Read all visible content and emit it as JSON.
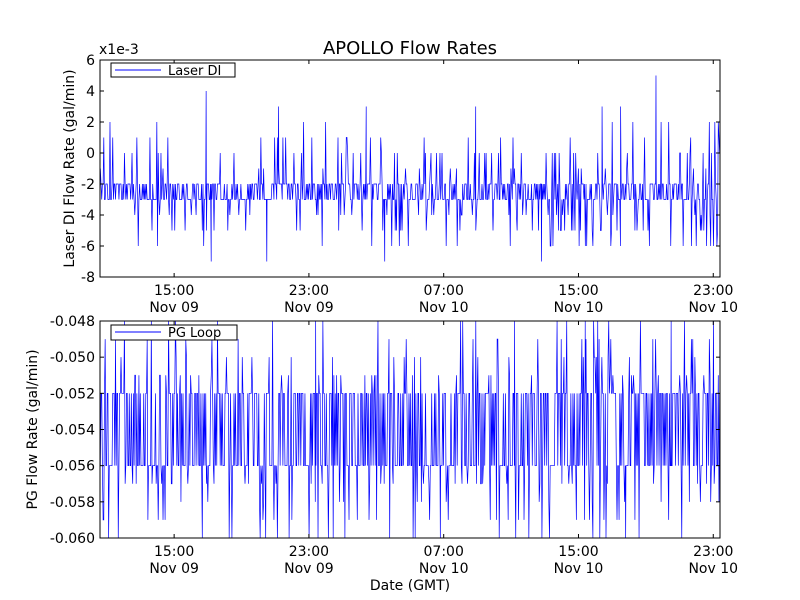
{
  "figure": {
    "title": "APOLLO Flow Rates",
    "xlabel": "Date (GMT)"
  },
  "colors": {
    "line": "#0000ff",
    "axes": "#000000",
    "background": "#ffffff"
  },
  "chart_data": [
    {
      "type": "line",
      "title": "APOLLO Flow Rates",
      "ylabel": "Laser DI Flow Rate (gal/min)",
      "xlabel": "",
      "offset_label": "x1e-3",
      "legend": {
        "label": "Laser DI",
        "position": "top-left"
      },
      "x_ticks": [
        {
          "line1": "15:00",
          "line2": "Nov 09"
        },
        {
          "line1": "23:00",
          "line2": "Nov 09"
        },
        {
          "line1": "07:00",
          "line2": "Nov 10"
        },
        {
          "line1": "15:00",
          "line2": "Nov 10"
        },
        {
          "line1": "23:00",
          "line2": "Nov 10"
        }
      ],
      "x_tick_hours": [
        15,
        23,
        31,
        39,
        47
      ],
      "xlim_hours": [
        10.6,
        47.4
      ],
      "y_ticks": [
        "6",
        "4",
        "2",
        "0",
        "-2",
        "-4",
        "-6",
        "-8"
      ],
      "y_tick_values": [
        6,
        4,
        2,
        0,
        -2,
        -4,
        -6,
        -8
      ],
      "ylim": [
        -8,
        6
      ],
      "series": {
        "name": "Laser DI",
        "baseline_low": -3,
        "baseline_high": -2,
        "levels_up": [
          -1,
          0,
          0,
          1,
          2
        ],
        "levels_down": [
          -4,
          -4,
          -5,
          -5,
          -6
        ],
        "spikes": [
          {
            "hour": 16.9,
            "value": 4
          },
          {
            "hour": 21.2,
            "value": 3
          },
          {
            "hour": 26.4,
            "value": 3
          },
          {
            "hour": 32.9,
            "value": 3
          },
          {
            "hour": 40.4,
            "value": 3
          },
          {
            "hour": 41.5,
            "value": 3
          },
          {
            "hour": 43.6,
            "value": 5
          },
          {
            "hour": 20.5,
            "value": -7
          },
          {
            "hour": 27.5,
            "value": -7
          },
          {
            "hour": 36.8,
            "value": -7
          },
          {
            "hour": 17.2,
            "value": -7
          }
        ]
      }
    },
    {
      "type": "line",
      "title": "",
      "ylabel": "PG Flow Rate (gal/min)",
      "xlabel": "Date (GMT)",
      "legend": {
        "label": "PG Loop",
        "position": "top-left"
      },
      "x_ticks": [
        {
          "line1": "15:00",
          "line2": "Nov 09"
        },
        {
          "line1": "23:00",
          "line2": "Nov 09"
        },
        {
          "line1": "07:00",
          "line2": "Nov 10"
        },
        {
          "line1": "15:00",
          "line2": "Nov 10"
        },
        {
          "line1": "23:00",
          "line2": "Nov 10"
        }
      ],
      "x_tick_hours": [
        15,
        23,
        31,
        39,
        47
      ],
      "xlim_hours": [
        10.6,
        47.4
      ],
      "y_ticks": [
        "-0.048",
        "-0.050",
        "-0.052",
        "-0.054",
        "-0.056",
        "-0.058",
        "-0.060"
      ],
      "y_tick_values": [
        -0.048,
        -0.05,
        -0.052,
        -0.054,
        -0.056,
        -0.058,
        -0.06
      ],
      "ylim": [
        -0.06,
        -0.048
      ],
      "series": {
        "name": "PG Loop",
        "baseline_low": -0.056,
        "baseline_high": -0.052,
        "levels_up": [
          -0.051,
          -0.051,
          -0.05,
          -0.049,
          -0.048
        ],
        "levels_down": [
          -0.057,
          -0.057,
          -0.058,
          -0.059,
          -0.06
        ],
        "spikes": [
          {
            "hour": 30.8,
            "value": -0.06
          },
          {
            "hour": 41.8,
            "value": -0.06
          },
          {
            "hour": 35.2,
            "value": -0.048
          },
          {
            "hour": 39.4,
            "value": -0.048
          },
          {
            "hour": 44.5,
            "value": -0.048
          },
          {
            "hour": 23.4,
            "value": -0.048
          }
        ]
      }
    }
  ]
}
